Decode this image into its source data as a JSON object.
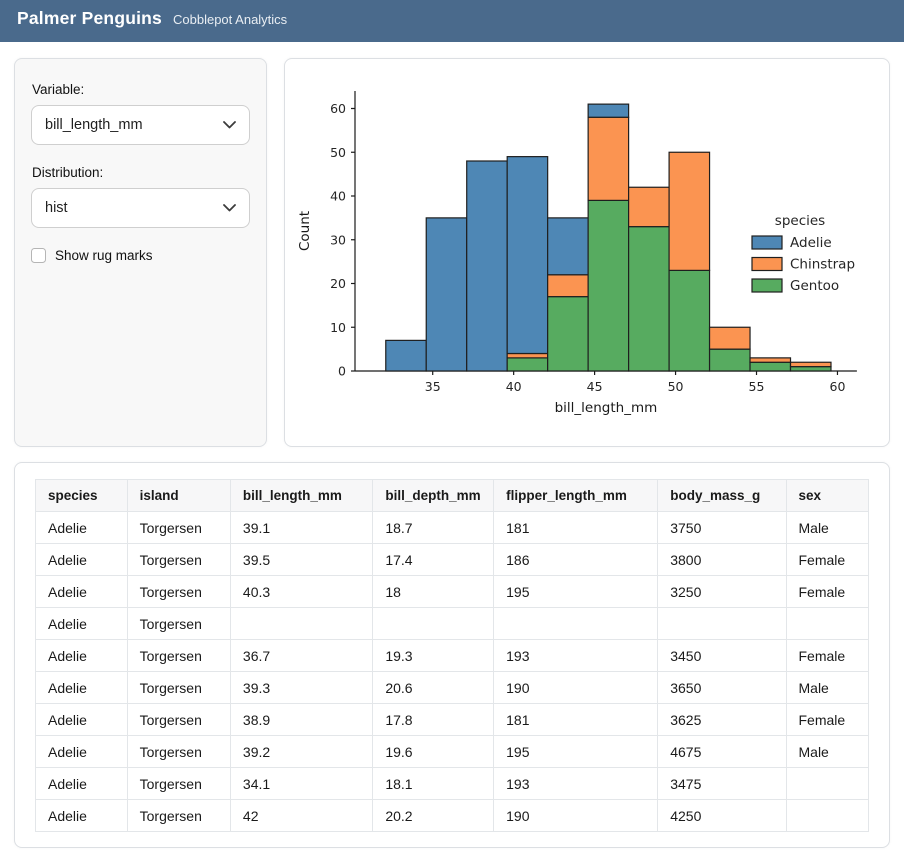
{
  "header": {
    "title": "Palmer Penguins",
    "subtitle": "Cobblepot Analytics",
    "background_color": "#4a6a8c"
  },
  "sidebar": {
    "variable_label": "Variable:",
    "variable_value": "bill_length_mm",
    "distribution_label": "Distribution:",
    "distribution_value": "hist",
    "rug_label": "Show rug marks",
    "rug_checked": false
  },
  "chart_data": {
    "type": "bar",
    "subtype": "stacked_histogram",
    "title": "",
    "xlabel": "bill_length_mm",
    "ylabel": "Count",
    "x_ticks": [
      35,
      40,
      45,
      50,
      55,
      60
    ],
    "y_ticks": [
      0,
      10,
      20,
      30,
      40,
      50,
      60
    ],
    "xlim": [
      30.2,
      61.2
    ],
    "ylim": [
      0,
      64
    ],
    "grid": false,
    "bin_edges": [
      32.1,
      34.6,
      37.1,
      39.6,
      42.1,
      44.6,
      47.1,
      49.6,
      52.1,
      54.6,
      57.1,
      59.6
    ],
    "series": [
      {
        "name": "Adelie",
        "color": "#4e87b5",
        "values": [
          7,
          35,
          48,
          45,
          13,
          3,
          0,
          0,
          0,
          0,
          0
        ]
      },
      {
        "name": "Chinstrap",
        "color": "#fb9451",
        "values": [
          0,
          0,
          0,
          1,
          5,
          19,
          9,
          27,
          5,
          1,
          1
        ]
      },
      {
        "name": "Gentoo",
        "color": "#57ab60",
        "values": [
          0,
          0,
          0,
          3,
          17,
          39,
          33,
          23,
          5,
          2,
          1
        ]
      }
    ],
    "stack_bottom_to_top": [
      "Gentoo",
      "Chinstrap",
      "Adelie"
    ],
    "bar_edge_color": "#1f1f1f",
    "legend": {
      "title": "species",
      "position": "right",
      "entries": [
        "Adelie",
        "Chinstrap",
        "Gentoo"
      ]
    }
  },
  "table": {
    "columns": [
      "species",
      "island",
      "bill_length_mm",
      "bill_depth_mm",
      "flipper_length_mm",
      "body_mass_g",
      "sex"
    ],
    "column_widths_pct": [
      11.0,
      12.4,
      17.1,
      14.5,
      19.7,
      15.4,
      9.9
    ],
    "rows": [
      [
        "Adelie",
        "Torgersen",
        "39.1",
        "18.7",
        "181",
        "3750",
        "Male"
      ],
      [
        "Adelie",
        "Torgersen",
        "39.5",
        "17.4",
        "186",
        "3800",
        "Female"
      ],
      [
        "Adelie",
        "Torgersen",
        "40.3",
        "18",
        "195",
        "3250",
        "Female"
      ],
      [
        "Adelie",
        "Torgersen",
        "",
        "",
        "",
        "",
        ""
      ],
      [
        "Adelie",
        "Torgersen",
        "36.7",
        "19.3",
        "193",
        "3450",
        "Female"
      ],
      [
        "Adelie",
        "Torgersen",
        "39.3",
        "20.6",
        "190",
        "3650",
        "Male"
      ],
      [
        "Adelie",
        "Torgersen",
        "38.9",
        "17.8",
        "181",
        "3625",
        "Female"
      ],
      [
        "Adelie",
        "Torgersen",
        "39.2",
        "19.6",
        "195",
        "4675",
        "Male"
      ],
      [
        "Adelie",
        "Torgersen",
        "34.1",
        "18.1",
        "193",
        "3475",
        ""
      ],
      [
        "Adelie",
        "Torgersen",
        "42",
        "20.2",
        "190",
        "4250",
        ""
      ]
    ]
  }
}
